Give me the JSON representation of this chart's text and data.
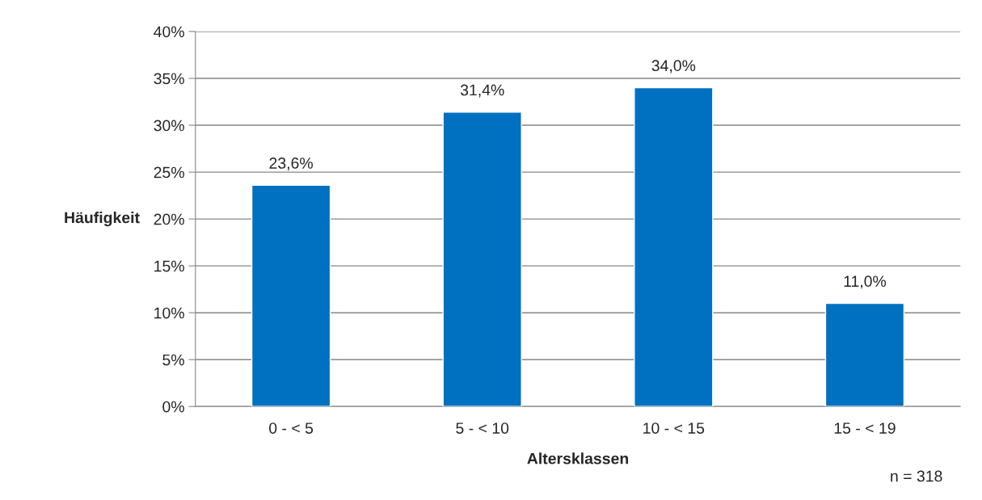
{
  "chart_data": {
    "type": "bar",
    "xlabel": "Altersklassen",
    "ylabel": "Häufigkeit",
    "categories": [
      "0 - < 5",
      "5 - < 10",
      "10 - < 15",
      "15 - < 19"
    ],
    "values": [
      23.6,
      31.4,
      34.0,
      11.0
    ],
    "color": "#0070c0",
    "value_labels": [
      "23,6%",
      "31,4%",
      "34,0%",
      "11,0%"
    ],
    "ylim": [
      0,
      40
    ],
    "yticks": [
      {
        "value": 0,
        "label": "0%"
      },
      {
        "value": 5,
        "label": "5%"
      },
      {
        "value": 10,
        "label": "10%"
      },
      {
        "value": 15,
        "label": "15%"
      },
      {
        "value": 20,
        "label": "20%"
      },
      {
        "value": 25,
        "label": "25%"
      },
      {
        "value": 30,
        "label": "30%"
      },
      {
        "value": 35,
        "label": "35%"
      },
      {
        "value": 40,
        "label": "40%"
      }
    ],
    "grid": "y",
    "annotations": [
      "n = 318"
    ]
  }
}
